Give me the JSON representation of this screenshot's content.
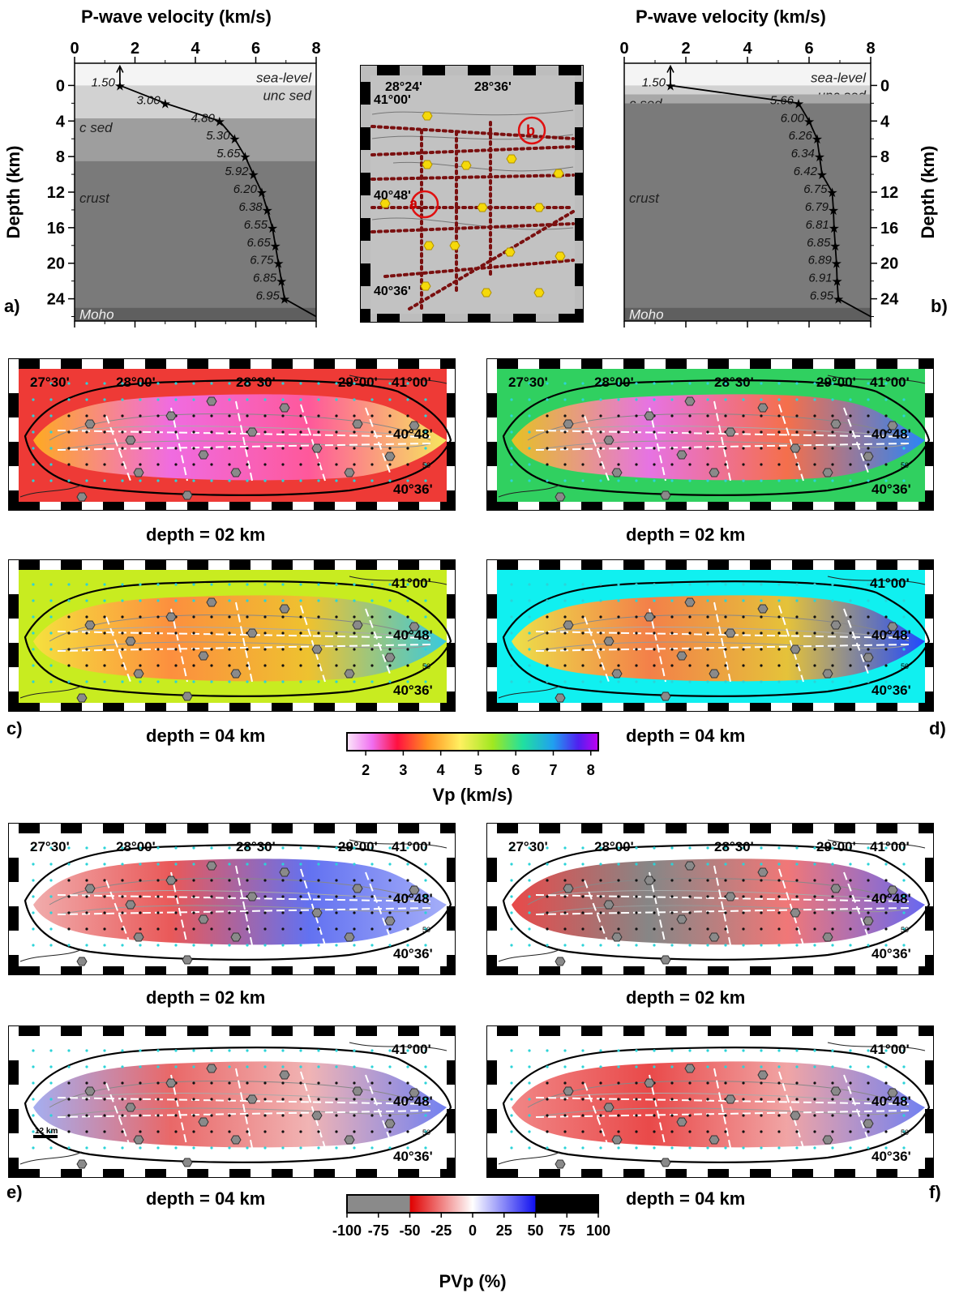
{
  "profile_a": {
    "panel_label": "a)",
    "x_title": "P-wave velocity (km/s)",
    "y_title": "Depth (km)",
    "x_ticks": [
      "0",
      "2",
      "4",
      "6",
      "8"
    ],
    "y_ticks": [
      "0",
      "4",
      "8",
      "12",
      "16",
      "20",
      "24"
    ],
    "layers": [
      {
        "name": "sea-level",
        "top": -2.5,
        "bottom": 0,
        "color": "#f4f4f4"
      },
      {
        "name": "unc sed",
        "top": 0,
        "bottom": 3.7,
        "color": "#d2d2d2"
      },
      {
        "name": "c sed",
        "top": 3.7,
        "bottom": 8.5,
        "color": "#9e9e9e"
      },
      {
        "name": "crust",
        "top": 8.5,
        "bottom": 25,
        "color": "#7a7a7a"
      },
      {
        "name": "Moho",
        "top": 25,
        "bottom": 26.5,
        "color": "#5f5f5f"
      }
    ]
  },
  "profile_b": {
    "panel_label": "b)",
    "x_title": "P-wave velocity (km/s)",
    "y_title": "Depth (km)",
    "x_ticks": [
      "0",
      "2",
      "4",
      "6",
      "8"
    ],
    "y_ticks": [
      "0",
      "4",
      "8",
      "12",
      "16",
      "20",
      "24"
    ],
    "layers": [
      {
        "name": "sea-level",
        "top": -2.5,
        "bottom": 0,
        "color": "#f4f4f4"
      },
      {
        "name": "unc sed",
        "top": 0,
        "bottom": 1,
        "color": "#d2d2d2"
      },
      {
        "name": "c sed",
        "top": 1,
        "bottom": 2,
        "color": "#a8a8a8"
      },
      {
        "name": "crust",
        "top": 2,
        "bottom": 25,
        "color": "#7a7a7a"
      },
      {
        "name": "Moho",
        "top": 25,
        "bottom": 26.5,
        "color": "#5f5f5f"
      }
    ]
  },
  "index_map": {
    "lon_labels": [
      "28°24'",
      "28°36'"
    ],
    "lat_labels": [
      "41°00'",
      "40°48'",
      "40°36'"
    ],
    "site_labels": [
      "a",
      "b"
    ]
  },
  "maps": {
    "lon_labels": [
      "27°30'",
      "28°00'",
      "28°30'",
      "29°00'"
    ],
    "lat_labels": [
      "41°00'",
      "40°48'",
      "40°36'"
    ],
    "scale_label": "12 km",
    "contour_label": "50",
    "panels": [
      {
        "caption": "depth = 02 km"
      },
      {
        "caption": "depth = 02 km"
      },
      {
        "caption": "depth = 04 km"
      },
      {
        "caption": "depth = 04 km"
      },
      {
        "caption": "depth = 02 km"
      },
      {
        "caption": "depth = 02 km"
      },
      {
        "caption": "depth = 04 km"
      },
      {
        "caption": "depth = 04 km"
      }
    ],
    "row_labels": [
      "c)",
      "d)",
      "e)",
      "f)"
    ]
  },
  "vp_colorbar": {
    "label": "Vp (km/s)",
    "ticks": [
      "2",
      "3",
      "4",
      "5",
      "6",
      "7",
      "8"
    ],
    "range": [
      1.5,
      8.2
    ]
  },
  "pvp_colorbar": {
    "label": "PVp (%)",
    "ticks": [
      "-100",
      "-75",
      "-50",
      "-25",
      "0",
      "25",
      "50",
      "75",
      "100"
    ],
    "range": [
      -100,
      100
    ]
  },
  "chart_data": [
    {
      "type": "line",
      "title": "P-wave velocity (km/s)",
      "xlabel": "P-wave velocity (km/s)",
      "ylabel": "Depth (km)",
      "xlim": [
        0,
        8
      ],
      "ylim": [
        26.5,
        -2.5
      ],
      "series": [
        {
          "x": [
            1.5,
            1.5,
            3.0,
            4.8,
            5.3,
            5.65,
            5.92,
            6.2,
            6.38,
            6.55,
            6.65,
            6.75,
            6.85,
            6.95,
            8.0
          ],
          "y": [
            -2,
            0,
            2,
            4,
            6,
            8,
            10,
            12,
            14,
            16,
            18,
            20,
            22,
            24,
            26
          ],
          "labels": [
            "",
            "1.50",
            "3.00",
            "4.80",
            "5.30",
            "5.65",
            "5.92",
            "6.20",
            "6.38",
            "6.55",
            "6.65",
            "6.75",
            "6.85",
            "6.95",
            ""
          ]
        }
      ]
    },
    {
      "type": "line",
      "title": "P-wave velocity (km/s)",
      "xlabel": "P-wave velocity (km/s)",
      "ylabel": "Depth (km)",
      "xlim": [
        0,
        8
      ],
      "ylim": [
        26.5,
        -2.5
      ],
      "series": [
        {
          "x": [
            1.5,
            1.5,
            5.66,
            6.0,
            6.26,
            6.34,
            6.42,
            6.75,
            6.79,
            6.81,
            6.85,
            6.89,
            6.91,
            6.95,
            8.0
          ],
          "y": [
            -2,
            0,
            2,
            4,
            6,
            8,
            10,
            12,
            14,
            16,
            18,
            20,
            22,
            24,
            26
          ],
          "labels": [
            "",
            "1.50",
            "5.66",
            "6.00",
            "6.26",
            "6.34",
            "6.42",
            "6.75",
            "6.79",
            "6.81",
            "6.85",
            "6.89",
            "6.91",
            "6.95",
            ""
          ]
        }
      ]
    }
  ]
}
